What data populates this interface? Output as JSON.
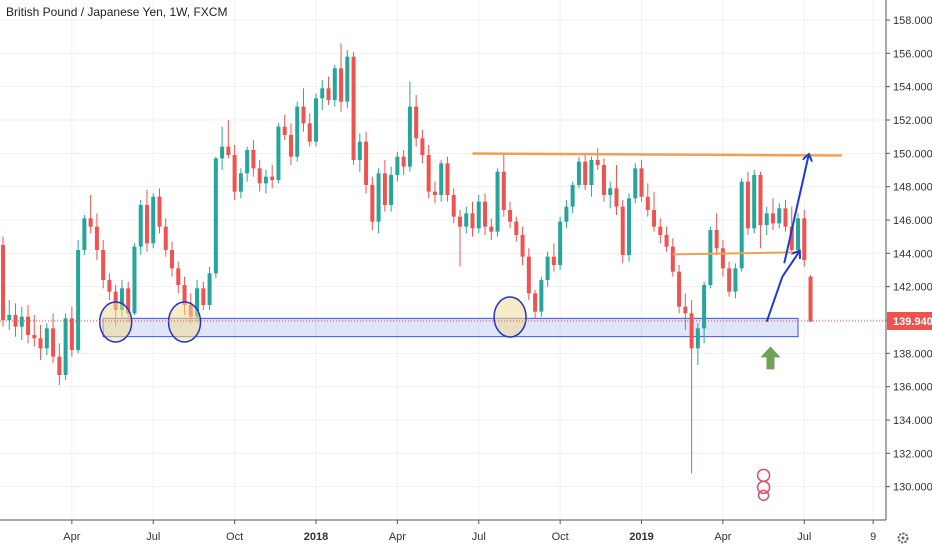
{
  "title": "British Pound / Japanese Yen, 1W, FXCM",
  "chart_data": {
    "type": "candlestick",
    "symbol": "British Pound / Japanese Yen",
    "interval": "1W",
    "source": "FXCM",
    "ylim": [
      128.0,
      159.2
    ],
    "y_ticks": [
      "158.000",
      "156.000",
      "154.000",
      "152.000",
      "150.000",
      "148.000",
      "146.000",
      "144.000",
      "142.000",
      "140.000",
      "138.000",
      "136.000",
      "134.000",
      "132.000",
      "130.000"
    ],
    "x_ticks": [
      {
        "label": "Apr",
        "bar": 11,
        "bold": false
      },
      {
        "label": "Jul",
        "bar": 24,
        "bold": false
      },
      {
        "label": "Oct",
        "bar": 37,
        "bold": false
      },
      {
        "label": "2018",
        "bar": 50,
        "bold": true
      },
      {
        "label": "Apr",
        "bar": 63,
        "bold": false
      },
      {
        "label": "Jul",
        "bar": 76,
        "bold": false
      },
      {
        "label": "Oct",
        "bar": 89,
        "bold": false
      },
      {
        "label": "2019",
        "bar": 102,
        "bold": true
      },
      {
        "label": "Apr",
        "bar": 115,
        "bold": false
      },
      {
        "label": "Jul",
        "bar": 128,
        "bold": false
      },
      {
        "label": "9",
        "bar": 139,
        "bold": false
      }
    ],
    "current_price": "139.940",
    "support_zone": [
      139.0,
      140.1
    ],
    "resistance_level": 149.9,
    "intermediate_level": 144.0,
    "candles": [
      [
        144.5,
        145.0,
        139.6,
        140.0
      ],
      [
        140.0,
        141.2,
        139.4,
        140.3
      ],
      [
        140.3,
        141.0,
        139.0,
        139.6
      ],
      [
        139.6,
        140.8,
        138.8,
        140.2
      ],
      [
        140.2,
        140.9,
        138.6,
        139.1
      ],
      [
        139.1,
        140.3,
        138.4,
        138.9
      ],
      [
        138.9,
        139.7,
        137.6,
        138.3
      ],
      [
        138.3,
        139.8,
        137.9,
        139.5
      ],
      [
        139.5,
        140.4,
        137.4,
        137.8
      ],
      [
        137.8,
        138.6,
        136.1,
        136.7
      ],
      [
        136.7,
        140.4,
        136.4,
        140.1
      ],
      [
        140.1,
        140.8,
        137.8,
        138.2
      ],
      [
        138.2,
        144.8,
        138.0,
        144.2
      ],
      [
        144.2,
        146.3,
        143.9,
        146.1
      ],
      [
        146.1,
        147.5,
        145.2,
        145.6
      ],
      [
        145.6,
        146.4,
        143.6,
        144.2
      ],
      [
        144.2,
        144.8,
        141.9,
        142.4
      ],
      [
        142.4,
        142.8,
        141.2,
        141.7
      ],
      [
        141.7,
        142.1,
        139.6,
        140.6
      ],
      [
        140.6,
        142.4,
        140.2,
        141.9
      ],
      [
        141.9,
        142.3,
        139.9,
        140.4
      ],
      [
        140.4,
        144.6,
        140.3,
        144.4
      ],
      [
        144.4,
        147.2,
        143.9,
        146.9
      ],
      [
        146.9,
        147.8,
        144.1,
        144.6
      ],
      [
        144.6,
        147.6,
        144.3,
        147.4
      ],
      [
        147.4,
        147.9,
        145.2,
        145.6
      ],
      [
        145.6,
        146.1,
        143.8,
        144.2
      ],
      [
        144.2,
        144.7,
        142.6,
        143.1
      ],
      [
        143.1,
        143.5,
        141.6,
        142.1
      ],
      [
        142.1,
        142.6,
        140.3,
        140.9
      ],
      [
        140.9,
        141.6,
        139.8,
        140.2
      ],
      [
        140.2,
        142.4,
        139.9,
        141.9
      ],
      [
        141.9,
        142.3,
        140.6,
        140.9
      ],
      [
        140.9,
        143.2,
        140.6,
        142.8
      ],
      [
        142.8,
        149.8,
        142.5,
        149.7
      ],
      [
        149.7,
        151.6,
        149.0,
        150.4
      ],
      [
        150.4,
        152.0,
        149.7,
        149.9
      ],
      [
        149.9,
        150.5,
        147.2,
        147.7
      ],
      [
        147.7,
        149.1,
        147.3,
        148.8
      ],
      [
        148.8,
        150.4,
        148.3,
        150.2
      ],
      [
        150.2,
        150.8,
        148.6,
        149.1
      ],
      [
        149.1,
        149.6,
        147.7,
        148.2
      ],
      [
        148.2,
        149.0,
        147.6,
        148.6
      ],
      [
        148.6,
        149.3,
        147.9,
        148.4
      ],
      [
        148.4,
        151.8,
        148.2,
        151.6
      ],
      [
        151.6,
        152.3,
        150.8,
        151.1
      ],
      [
        151.1,
        151.8,
        149.3,
        149.8
      ],
      [
        149.8,
        153.1,
        149.5,
        152.8
      ],
      [
        152.8,
        153.9,
        151.3,
        151.8
      ],
      [
        151.8,
        152.4,
        150.4,
        150.7
      ],
      [
        150.7,
        153.6,
        150.4,
        153.3
      ],
      [
        153.3,
        154.4,
        152.6,
        153.9
      ],
      [
        153.9,
        154.6,
        152.9,
        153.2
      ],
      [
        153.2,
        155.3,
        152.8,
        155.1
      ],
      [
        155.1,
        156.6,
        152.5,
        153.1
      ],
      [
        153.1,
        156.2,
        152.7,
        155.8
      ],
      [
        155.8,
        156.1,
        149.3,
        149.6
      ],
      [
        149.6,
        151.2,
        148.9,
        150.7
      ],
      [
        150.7,
        151.3,
        147.6,
        148.1
      ],
      [
        148.1,
        148.6,
        145.4,
        145.9
      ],
      [
        145.9,
        149.1,
        145.2,
        148.8
      ],
      [
        148.8,
        149.6,
        146.5,
        146.9
      ],
      [
        146.9,
        149.2,
        146.5,
        148.7
      ],
      [
        148.7,
        150.1,
        148.3,
        149.8
      ],
      [
        149.8,
        150.2,
        148.7,
        149.2
      ],
      [
        149.2,
        154.3,
        148.9,
        152.8
      ],
      [
        152.8,
        153.5,
        150.4,
        150.9
      ],
      [
        150.9,
        151.4,
        149.4,
        149.9
      ],
      [
        149.9,
        150.5,
        147.3,
        147.7
      ],
      [
        147.7,
        148.3,
        147.0,
        147.5
      ],
      [
        147.5,
        149.6,
        147.1,
        149.4
      ],
      [
        149.4,
        149.8,
        147.1,
        147.5
      ],
      [
        147.5,
        147.9,
        145.8,
        146.2
      ],
      [
        146.2,
        146.6,
        143.2,
        145.6
      ],
      [
        145.6,
        146.8,
        145.2,
        146.4
      ],
      [
        146.4,
        147.1,
        145.0,
        145.5
      ],
      [
        145.5,
        147.5,
        145.2,
        147.1
      ],
      [
        147.1,
        147.6,
        145.1,
        145.6
      ],
      [
        145.6,
        146.1,
        144.8,
        145.3
      ],
      [
        145.3,
        149.1,
        145.0,
        148.9
      ],
      [
        148.9,
        149.9,
        146.2,
        146.6
      ],
      [
        146.6,
        147.1,
        145.5,
        145.9
      ],
      [
        145.9,
        146.2,
        144.7,
        145.1
      ],
      [
        145.1,
        145.6,
        143.3,
        143.8
      ],
      [
        143.8,
        144.3,
        141.2,
        141.6
      ],
      [
        141.6,
        141.8,
        140.1,
        140.5
      ],
      [
        140.5,
        142.6,
        140.2,
        142.4
      ],
      [
        142.4,
        144.1,
        142.0,
        143.8
      ],
      [
        143.8,
        144.6,
        142.9,
        143.3
      ],
      [
        143.3,
        146.2,
        143.0,
        145.9
      ],
      [
        145.9,
        147.2,
        145.5,
        146.8
      ],
      [
        146.8,
        148.3,
        146.4,
        148.1
      ],
      [
        148.1,
        149.8,
        147.9,
        149.5
      ],
      [
        149.5,
        149.9,
        147.8,
        148.1
      ],
      [
        148.1,
        149.8,
        147.4,
        149.6
      ],
      [
        149.6,
        150.3,
        149.0,
        149.3
      ],
      [
        149.3,
        149.7,
        147.1,
        147.5
      ],
      [
        147.5,
        148.3,
        146.7,
        147.9
      ],
      [
        147.9,
        149.3,
        146.3,
        146.8
      ],
      [
        146.8,
        147.2,
        143.4,
        143.9
      ],
      [
        143.9,
        147.6,
        143.5,
        147.3
      ],
      [
        147.3,
        149.4,
        147.0,
        149.1
      ],
      [
        149.1,
        149.6,
        147.1,
        147.4
      ],
      [
        147.4,
        148.2,
        146.2,
        146.6
      ],
      [
        146.6,
        147.7,
        145.3,
        145.6
      ],
      [
        145.6,
        146.1,
        144.6,
        145.1
      ],
      [
        145.1,
        145.6,
        144.1,
        144.4
      ],
      [
        144.4,
        144.9,
        142.6,
        142.9
      ],
      [
        142.9,
        143.3,
        140.4,
        140.8
      ],
      [
        140.8,
        141.6,
        139.4,
        140.4
      ],
      [
        140.4,
        141.2,
        130.8,
        138.3
      ],
      [
        138.3,
        139.8,
        137.3,
        139.5
      ],
      [
        139.5,
        142.3,
        138.6,
        142.1
      ],
      [
        142.1,
        145.6,
        141.9,
        145.4
      ],
      [
        145.4,
        146.4,
        143.9,
        144.3
      ],
      [
        144.3,
        144.8,
        142.6,
        143.1
      ],
      [
        143.1,
        143.5,
        141.4,
        141.7
      ],
      [
        141.7,
        143.4,
        141.3,
        143.1
      ],
      [
        143.1,
        148.5,
        142.9,
        148.3
      ],
      [
        148.3,
        148.9,
        145.1,
        145.5
      ],
      [
        145.5,
        149.0,
        145.2,
        148.7
      ],
      [
        148.7,
        148.9,
        144.3,
        145.7
      ],
      [
        145.7,
        146.8,
        145.1,
        146.4
      ],
      [
        146.4,
        147.3,
        145.4,
        145.8
      ],
      [
        145.8,
        147.0,
        145.5,
        146.7
      ],
      [
        146.7,
        147.2,
        145.3,
        145.6
      ],
      [
        145.6,
        146.8,
        143.9,
        144.2
      ],
      [
        144.2,
        146.4,
        143.9,
        146.1
      ],
      [
        146.1,
        146.6,
        143.2,
        143.6
      ],
      [
        142.6,
        142.7,
        139.9,
        139.9
      ]
    ]
  },
  "icons": {
    "settings": "gear-icon"
  }
}
